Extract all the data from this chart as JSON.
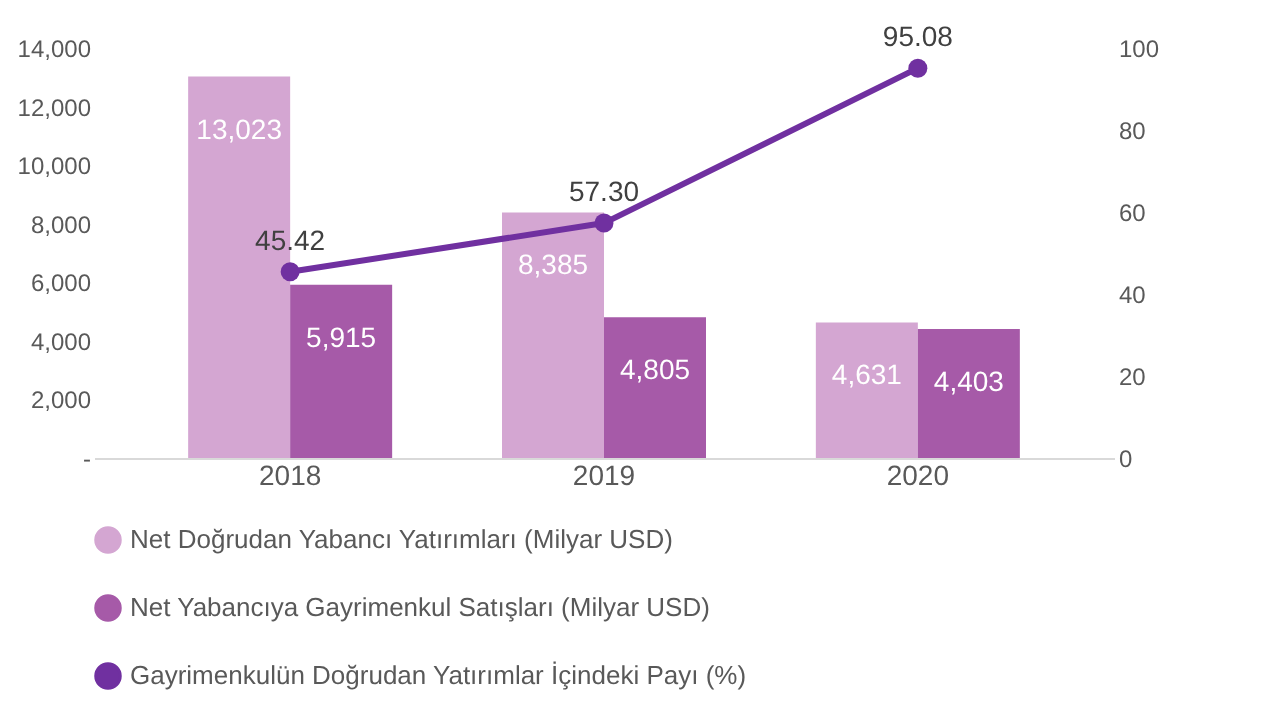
{
  "chart_data": {
    "type": "bar",
    "categories": [
      "2018",
      "2019",
      "2020"
    ],
    "series": [
      {
        "name": "Net Doğrudan Yabancı Yatırımları (Milyar USD)",
        "color": "#d4a6d2",
        "values": [
          13023,
          8385,
          4631
        ],
        "value_labels": [
          "13,023",
          "8,385",
          "4,631"
        ]
      },
      {
        "name": "Net Yabancıya Gayrimenkul Satışları (Milyar USD)",
        "color": "#a65aa8",
        "values": [
          5915,
          4805,
          4403
        ],
        "value_labels": [
          "5,915",
          "4,805",
          "4,403"
        ]
      },
      {
        "name": "Gayrimenkulün Doğrudan Yatırımlar İçindeki Payı (%)",
        "type": "line",
        "axis": "y2",
        "color": "#7030a0",
        "values": [
          45.42,
          57.3,
          95.08
        ],
        "value_labels": [
          "45.42",
          "57.30",
          "95.08"
        ]
      }
    ],
    "ylim": [
      0,
      14000
    ],
    "yticks": [
      {
        "value": 0,
        "label": "-"
      },
      {
        "value": 2000,
        "label": "2,000"
      },
      {
        "value": 4000,
        "label": "4,000"
      },
      {
        "value": 6000,
        "label": "6,000"
      },
      {
        "value": 8000,
        "label": "8,000"
      },
      {
        "value": 10000,
        "label": "10,000"
      },
      {
        "value": 12000,
        "label": "12,000"
      },
      {
        "value": 14000,
        "label": "14,000"
      }
    ],
    "y2lim": [
      0,
      100
    ],
    "y2ticks": [
      0,
      20,
      40,
      60,
      80,
      100
    ],
    "legend": "bottom",
    "marker": "circle",
    "line_style": "solid"
  }
}
